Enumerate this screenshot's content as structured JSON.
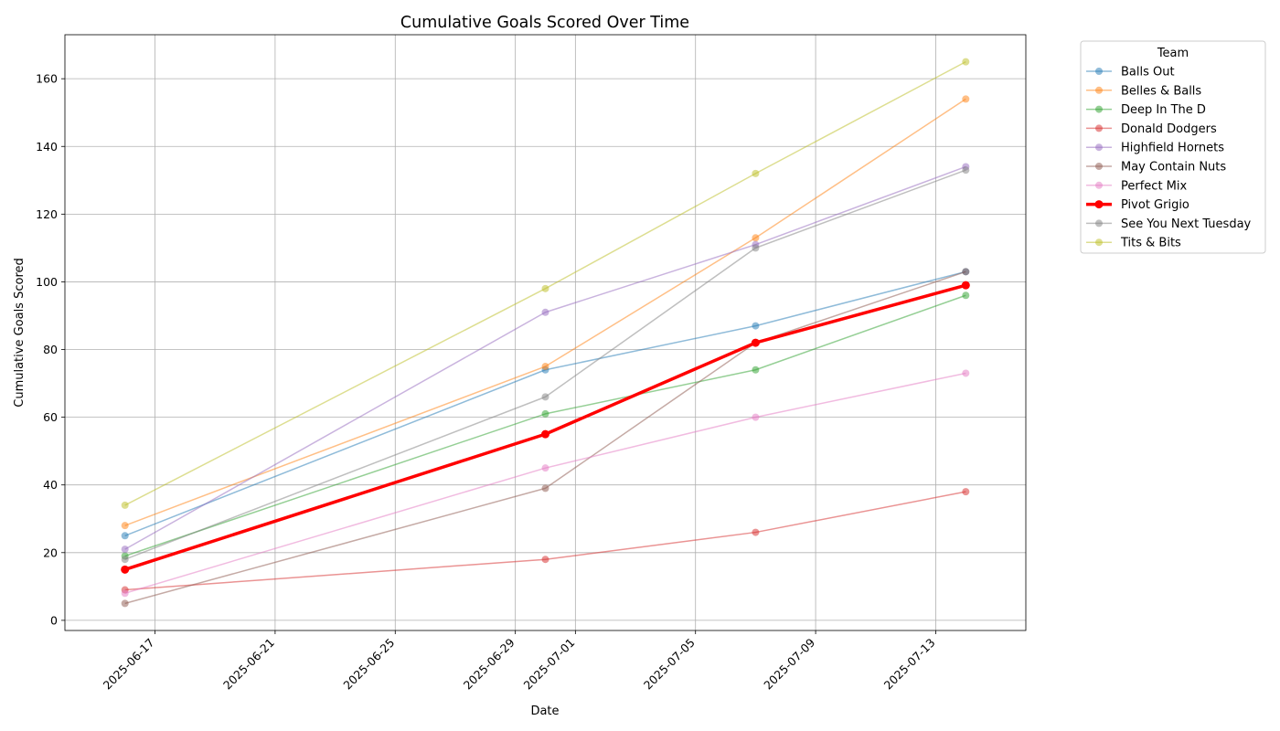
{
  "chart_data": {
    "type": "line",
    "title": "Cumulative Goals Scored Over Time",
    "xlabel": "Date",
    "ylabel": "Cumulative Goals Scored",
    "x": [
      "2025-06-16",
      "2025-06-30",
      "2025-07-07",
      "2025-07-14"
    ],
    "xlim": [
      "2025-06-14",
      "2025-07-16"
    ],
    "x_ticks": [
      "2025-06-17",
      "2025-06-21",
      "2025-06-25",
      "2025-06-29",
      "2025-07-01",
      "2025-07-05",
      "2025-07-09",
      "2025-07-13"
    ],
    "ylim": [
      -3,
      173
    ],
    "y_ticks": [
      0,
      20,
      40,
      60,
      80,
      100,
      120,
      140,
      160
    ],
    "grid": true,
    "legend_title": "Team",
    "legend_position": "outside-top-right",
    "highlight_series": "Pivot Grigio",
    "series": [
      {
        "name": "Balls Out",
        "color": "#1f77b4",
        "values": [
          25,
          74,
          87,
          103
        ]
      },
      {
        "name": "Belles & Balls",
        "color": "#ff7f0e",
        "values": [
          28,
          75,
          113,
          154
        ]
      },
      {
        "name": "Deep In The D",
        "color": "#2ca02c",
        "values": [
          19,
          61,
          74,
          96
        ]
      },
      {
        "name": "Donald Dodgers",
        "color": "#d62728",
        "values": [
          9,
          18,
          26,
          38
        ]
      },
      {
        "name": "Highfield Hornets",
        "color": "#9467bd",
        "values": [
          21,
          91,
          111,
          134
        ]
      },
      {
        "name": "May Contain Nuts",
        "color": "#8c564b",
        "values": [
          5,
          39,
          82,
          103
        ]
      },
      {
        "name": "Perfect Mix",
        "color": "#e377c2",
        "values": [
          8,
          45,
          60,
          73
        ]
      },
      {
        "name": "Pivot Grigio",
        "color": "#ff0000",
        "values": [
          15,
          55,
          82,
          99
        ]
      },
      {
        "name": "See You Next Tuesday",
        "color": "#7f7f7f",
        "values": [
          18,
          66,
          110,
          133
        ]
      },
      {
        "name": "Tits & Bits",
        "color": "#bcbd22",
        "values": [
          34,
          98,
          132,
          165
        ]
      }
    ]
  }
}
